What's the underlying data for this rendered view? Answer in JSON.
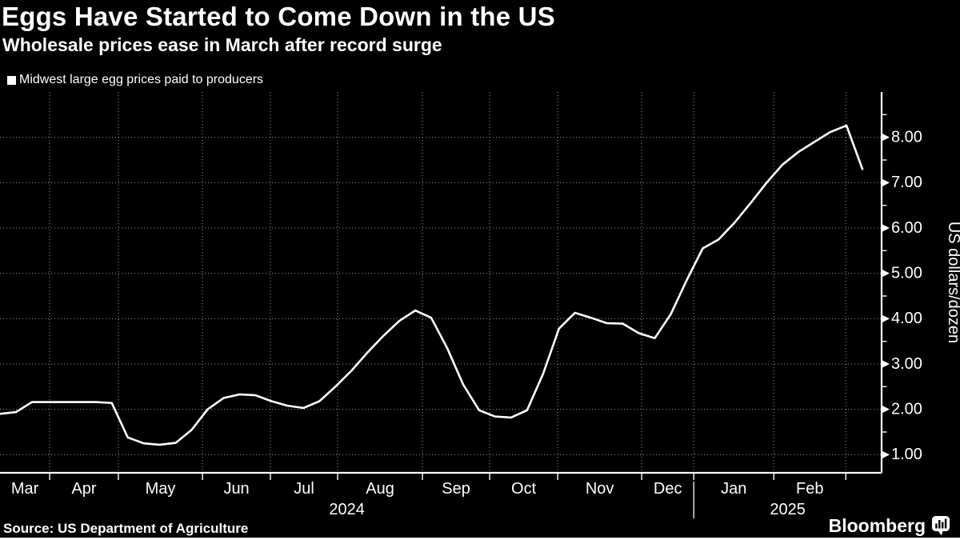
{
  "header": {
    "title": "Eggs Have Started to Come Down in the US",
    "subtitle": "Wholesale prices ease in March after record surge"
  },
  "legend": {
    "marker": "square-swatch",
    "label": "Midwest large egg prices paid to producers"
  },
  "footer": {
    "source": "Source: US Department of Agriculture",
    "brand": "Bloomberg",
    "brand_icon": "bar-chart-bubble-icon"
  },
  "colors": {
    "background": "#000000",
    "text": "#ffffff",
    "line": "#ffffff",
    "axis": "#ffffff",
    "grid": "#8c8c8c"
  },
  "chart_data": {
    "type": "line",
    "title": "Eggs Have Started to Come Down in the US",
    "subtitle": "Wholesale prices ease in March after record surge",
    "ylabel": "US dollars/dozen",
    "y_axis_side": "right",
    "grid": "dotted",
    "legend_position": "top-left",
    "ylim": [
      0.6,
      9.0
    ],
    "xlim_weeks": [
      0,
      55.2
    ],
    "y_ticks": [
      1,
      2,
      3,
      4,
      5,
      6,
      7,
      8
    ],
    "y_tick_labels": [
      "1.00",
      "2.00",
      "3.00",
      "4.00",
      "5.00",
      "6.00",
      "7.00",
      "8.00"
    ],
    "y_minor_ticks": [
      1.5,
      2.5,
      3.5,
      4.5,
      5.5,
      6.5,
      7.5,
      8.5
    ],
    "series": [
      {
        "name": "Midwest large egg prices paid to producers",
        "unit": "US dollars per dozen",
        "frequency": "weekly",
        "start": "Mar 2024",
        "end": "Mar 2025",
        "values": [
          1.9,
          1.94,
          2.16,
          2.16,
          2.16,
          2.16,
          2.16,
          2.14,
          1.38,
          1.25,
          1.22,
          1.26,
          1.55,
          2.0,
          2.25,
          2.33,
          2.31,
          2.18,
          2.08,
          2.03,
          2.18,
          2.5,
          2.85,
          3.25,
          3.62,
          3.95,
          4.18,
          4.02,
          3.35,
          2.55,
          1.98,
          1.84,
          1.82,
          1.98,
          2.78,
          3.78,
          4.13,
          4.02,
          3.9,
          3.89,
          3.68,
          3.57,
          4.1,
          4.85,
          5.55,
          5.75,
          6.12,
          6.55,
          7.0,
          7.4,
          7.68,
          7.9,
          8.12,
          8.26,
          7.3
        ]
      }
    ],
    "x_axis": {
      "months": [
        {
          "label": "Mar",
          "start_week": 0,
          "end_week": 3.11
        },
        {
          "label": "Apr",
          "start_week": 3.11,
          "end_week": 7.41
        },
        {
          "label": "May",
          "start_week": 7.41,
          "end_week": 12.68
        },
        {
          "label": "Jun",
          "start_week": 12.68,
          "end_week": 16.93
        },
        {
          "label": "Jul",
          "start_week": 16.93,
          "end_week": 21.14
        },
        {
          "label": "Aug",
          "start_week": 21.14,
          "end_week": 26.45
        },
        {
          "label": "Sep",
          "start_week": 26.45,
          "end_week": 30.66
        },
        {
          "label": "Oct",
          "start_week": 30.66,
          "end_week": 34.92
        },
        {
          "label": "Nov",
          "start_week": 34.92,
          "end_week": 40.18
        },
        {
          "label": "Dec",
          "start_week": 40.18,
          "end_week": 43.44
        },
        {
          "label": "Jan",
          "start_week": 43.44,
          "end_week": 48.45
        },
        {
          "label": "Feb",
          "start_week": 48.45,
          "end_week": 52.96
        }
      ],
      "years": [
        {
          "label": "2024",
          "start_week": 0,
          "end_week": 43.44
        },
        {
          "label": "2025",
          "start_week": 43.44,
          "end_week": 55.2
        }
      ]
    }
  }
}
